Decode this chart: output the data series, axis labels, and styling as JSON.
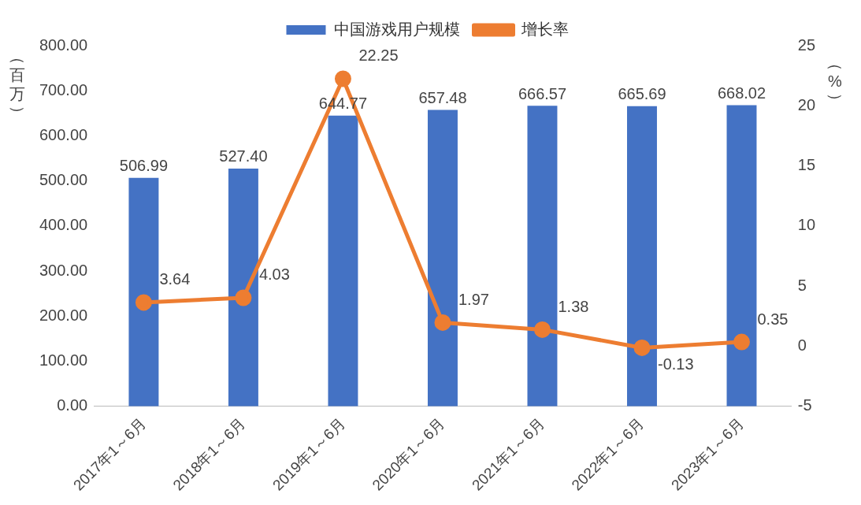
{
  "chart_data": {
    "type": "bar",
    "categories": [
      "2017年1～6月",
      "2018年1～6月",
      "2019年1～6月",
      "2020年1～6月",
      "2021年1～6月",
      "2022年1～6月",
      "2023年1～6月"
    ],
    "series": [
      {
        "name": "中国游戏用户规模",
        "color": "#4472c4",
        "values": [
          506.99,
          527.4,
          644.77,
          657.48,
          666.57,
          665.69,
          668.02
        ],
        "value_labels": [
          "506.99",
          "527.40",
          "644.77",
          "657.48",
          "666.57",
          "665.69",
          "668.02"
        ]
      },
      {
        "name": "增长率",
        "type": "line",
        "axis": "y2",
        "color": "#ed7d31",
        "values": [
          3.64,
          4.03,
          22.25,
          1.97,
          1.38,
          -0.13,
          0.35
        ],
        "value_labels": [
          "3.64",
          "4.03",
          "22.25",
          "1.97",
          "1.38",
          "-0.13",
          "0.35"
        ]
      }
    ],
    "ylabel": "（百万）",
    "y2label": "（%）",
    "ylim": [
      0,
      800
    ],
    "yticks": [
      {
        "value": 0,
        "label": "0.00"
      },
      {
        "value": 100,
        "label": "100.00"
      },
      {
        "value": 200,
        "label": "200.00"
      },
      {
        "value": 300,
        "label": "300.00"
      },
      {
        "value": 400,
        "label": "400.00"
      },
      {
        "value": 500,
        "label": "500.00"
      },
      {
        "value": 600,
        "label": "600.00"
      },
      {
        "value": 700,
        "label": "700.00"
      },
      {
        "value": 800,
        "label": "800.00"
      }
    ],
    "y2lim": [
      -5,
      25
    ],
    "y2ticks": [
      -5,
      0,
      5,
      10,
      15,
      20,
      25
    ],
    "legend": "top",
    "grid": false,
    "marker": "circle",
    "line_style": "solid"
  }
}
